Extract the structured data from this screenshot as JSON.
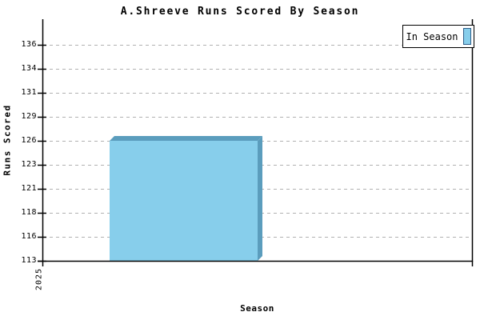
{
  "title": "A.Shreeve Runs Scored By Season",
  "axes": {
    "x_label": "Season",
    "y_label": "Runs Scored",
    "x_tick_labels": [
      "2025"
    ],
    "y_tick_labels": [
      "113",
      "116",
      "118",
      "121",
      "123",
      "126",
      "129",
      "131",
      "134",
      "136"
    ]
  },
  "legend": {
    "items": [
      {
        "label": "In Season",
        "swatch_color": "#87CEEB",
        "swatch_border_color": "#2E5F8A"
      }
    ]
  },
  "chart_data": {
    "type": "bar",
    "title": "A.Shreeve Runs Scored By Season",
    "xlabel": "Season",
    "ylabel": "Runs Scored",
    "categories": [
      "2025"
    ],
    "series": [
      {
        "name": "In Season",
        "values": [
          126
        ]
      }
    ],
    "y_ticks": [
      113,
      116,
      118,
      121,
      123,
      126,
      129,
      131,
      134,
      136
    ],
    "ylim": [
      113.2,
      136.2
    ],
    "grid": "horizontal-dashed",
    "legend_position": "top-right",
    "style": "3d-extruded-bar"
  },
  "colors": {
    "bar_fill": "#87CEEB",
    "bar_shade": "#5B9DBD",
    "grid": "#B0B0B0",
    "axis": "#000000",
    "background": "#FFFFFF"
  }
}
